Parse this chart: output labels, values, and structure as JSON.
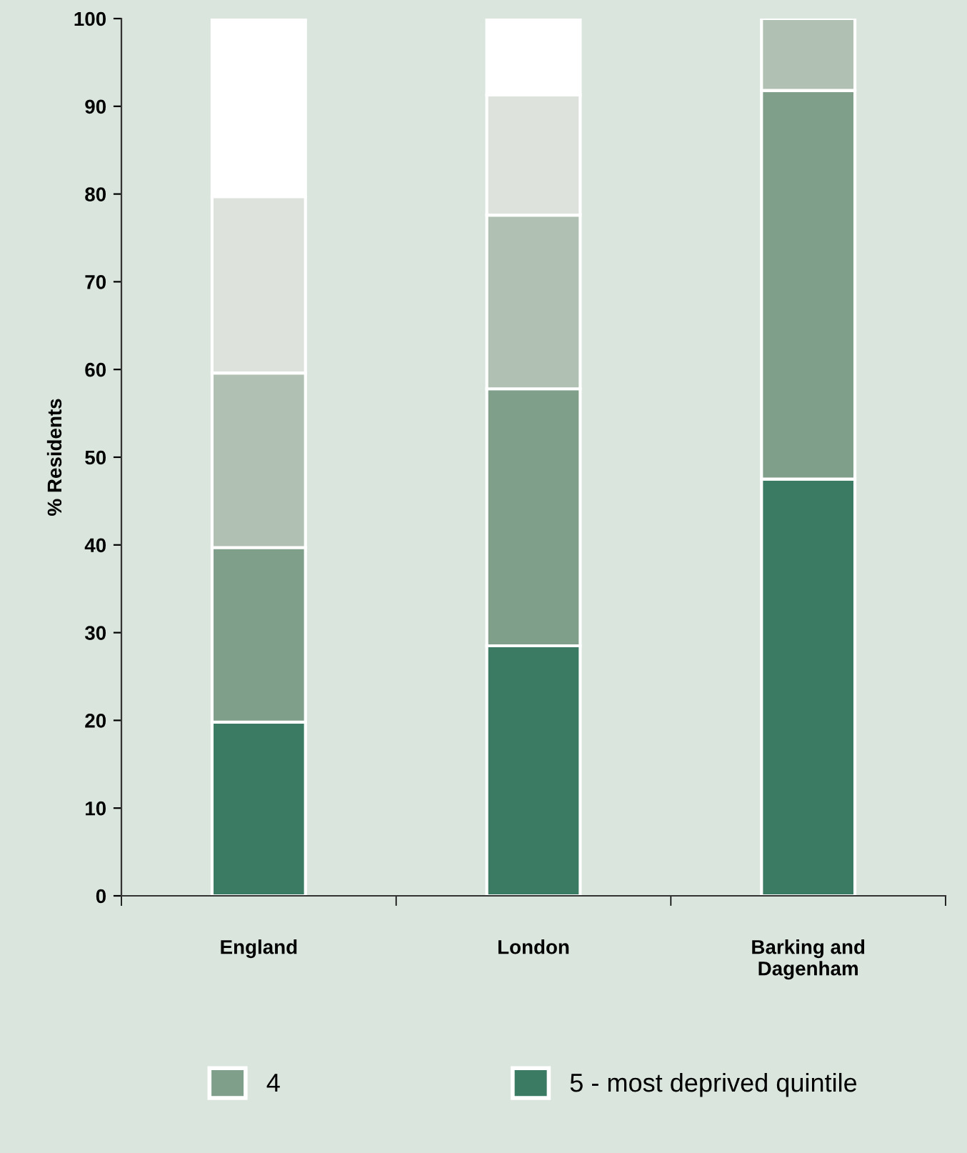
{
  "chart_data": {
    "type": "bar",
    "stacked": true,
    "ylabel": "% Residents",
    "categories": [
      "England",
      "London",
      "Barking and\nDagenham"
    ],
    "series": [
      {
        "name": "5 - most deprived quintile",
        "color": "#3b7b63",
        "values": [
          19.8,
          28.5,
          47.5
        ]
      },
      {
        "name": "4",
        "color": "#809f8b",
        "values": [
          19.9,
          29.3,
          44.3
        ]
      },
      {
        "color": "#b0c0b2",
        "values": [
          19.9,
          19.8,
          8.2
        ]
      },
      {
        "color": "#dde2dd",
        "values": [
          20.1,
          13.7,
          0
        ]
      },
      {
        "color": "#ffffff",
        "values": [
          20.3,
          8.7,
          0
        ]
      }
    ],
    "ylim": [
      0,
      100
    ],
    "yticks": [
      0,
      10,
      20,
      30,
      40,
      50,
      60,
      70,
      80,
      90,
      100
    ],
    "grid": false,
    "legend": "bottom"
  }
}
